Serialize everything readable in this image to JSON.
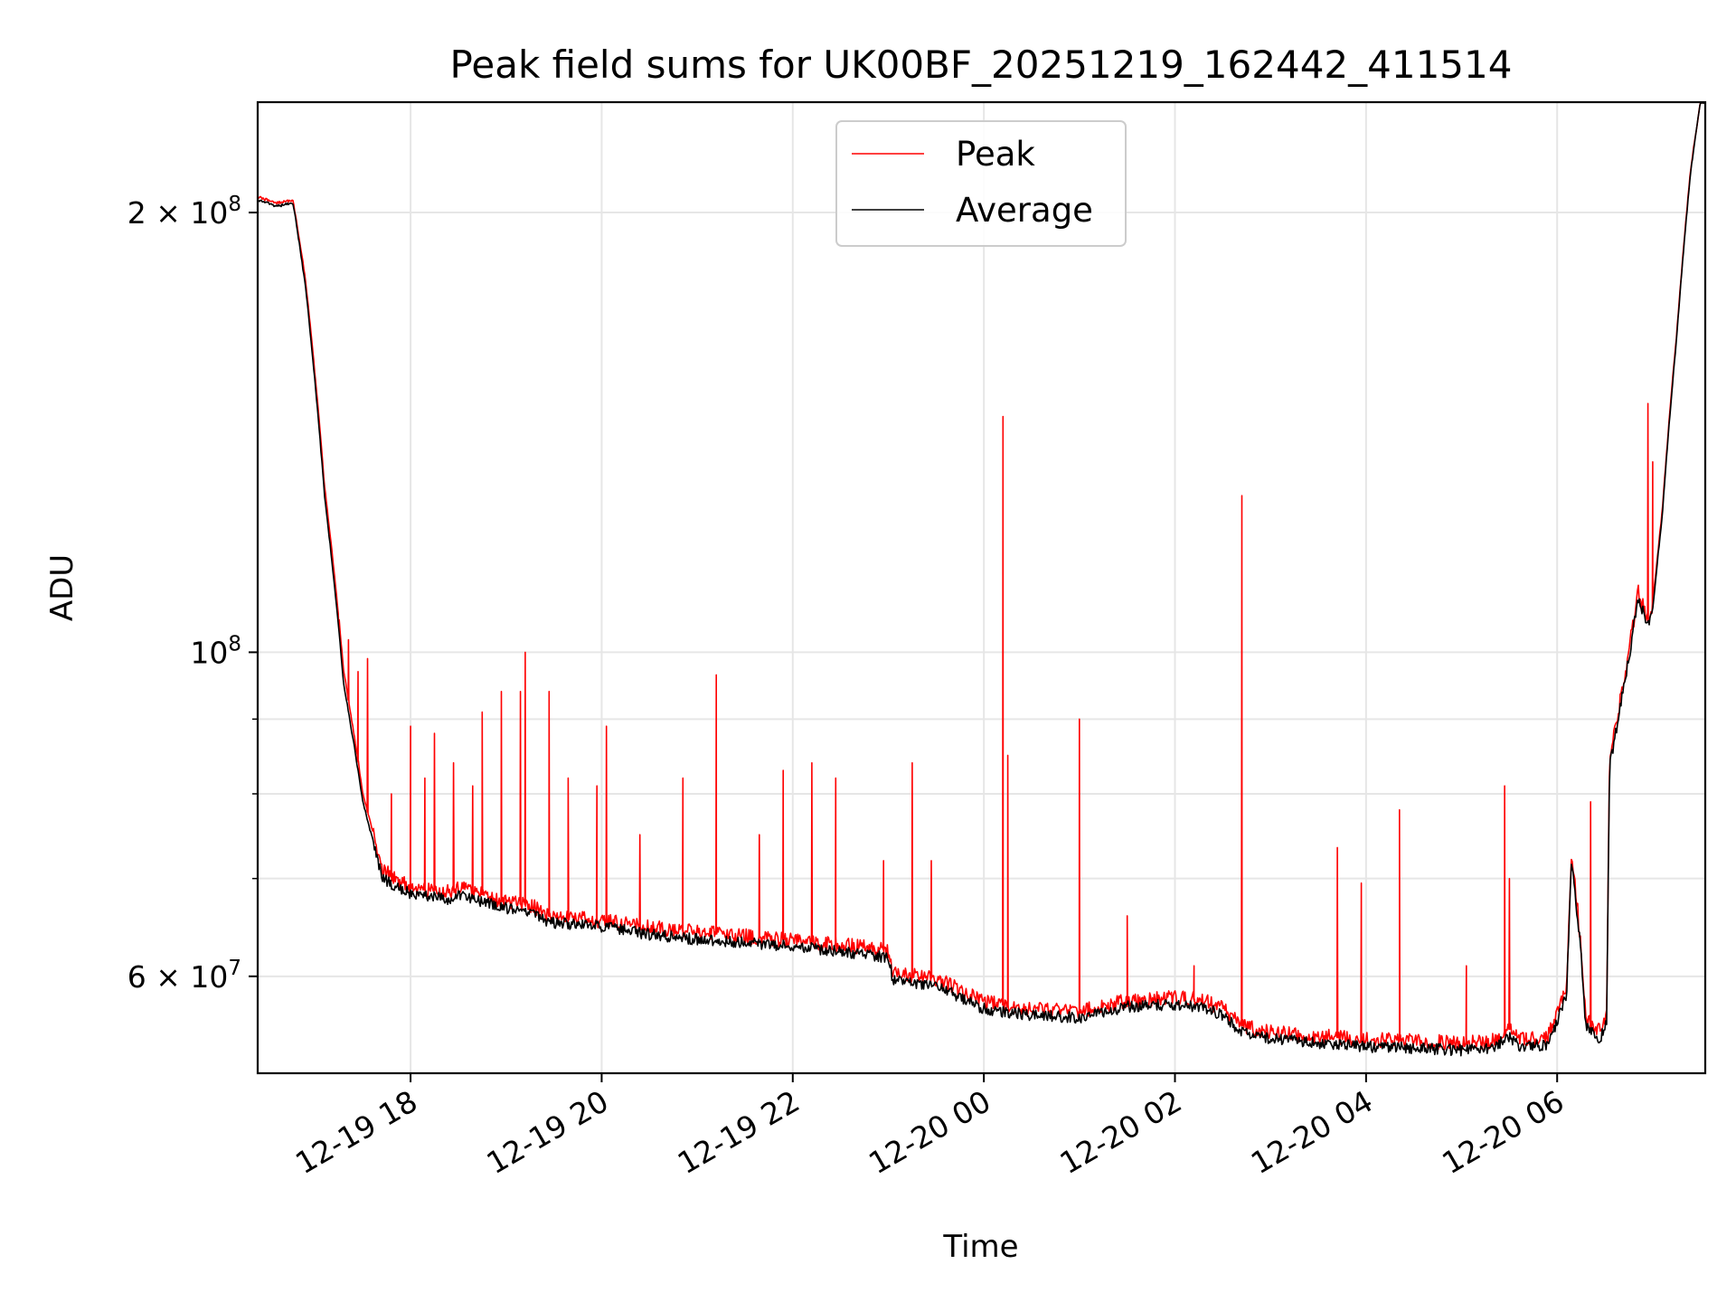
{
  "chart_data": {
    "type": "line",
    "title": "Peak field sums for UK00BF_20251219_162442_411514",
    "xlabel": "Time",
    "ylabel": "ADU",
    "yscale": "log",
    "ylim": [
      51500000,
      238000000
    ],
    "xlim_hours": [
      16.4,
      31.55
    ],
    "x_unit": "hours since 2025-12-19 00:00",
    "grid": true,
    "legend_position": "top-center",
    "x_ticks": [
      {
        "value": 18,
        "label": "12-19 18"
      },
      {
        "value": 20,
        "label": "12-19 20"
      },
      {
        "value": 22,
        "label": "12-19 22"
      },
      {
        "value": 24,
        "label": "12-20 00"
      },
      {
        "value": 26,
        "label": "12-20 02"
      },
      {
        "value": 28,
        "label": "12-20 04"
      },
      {
        "value": 30,
        "label": "12-20 06"
      }
    ],
    "y_ticks": [
      {
        "value": 200000000,
        "label": "2 × 10⁸",
        "base": "2 × 10",
        "exp": "8"
      },
      {
        "value": 100000000,
        "label": "10⁸",
        "base": "10",
        "exp": "8"
      },
      {
        "value": 60000000,
        "label": "6 × 10⁷",
        "base": "6 × 10",
        "exp": "7"
      }
    ],
    "y_minor_ticks": [
      70000000,
      80000000,
      90000000
    ],
    "series": [
      {
        "name": "Peak",
        "color": "#ff0000",
        "baseline": [
          [
            16.4,
            205000000
          ],
          [
            16.6,
            203000000
          ],
          [
            16.77,
            204000000
          ],
          [
            16.9,
            180000000
          ],
          [
            17.1,
            130000000
          ],
          [
            17.3,
            97000000
          ],
          [
            17.5,
            80000000
          ],
          [
            17.7,
            71000000
          ],
          [
            18.0,
            69000000
          ],
          [
            18.4,
            68500000
          ],
          [
            18.5,
            69000000
          ],
          [
            19.0,
            67500000
          ],
          [
            19.3,
            67000000
          ],
          [
            19.4,
            66000000
          ],
          [
            20.0,
            65500000
          ],
          [
            20.5,
            64800000
          ],
          [
            21.0,
            64300000
          ],
          [
            22.0,
            63500000
          ],
          [
            22.8,
            62800000
          ],
          [
            23.0,
            62500000
          ],
          [
            23.05,
            60300000
          ],
          [
            23.5,
            59800000
          ],
          [
            24.0,
            57600000
          ],
          [
            24.5,
            57000000
          ],
          [
            25.0,
            56800000
          ],
          [
            25.5,
            57800000
          ],
          [
            26.0,
            58000000
          ],
          [
            26.3,
            57800000
          ],
          [
            26.5,
            57000000
          ],
          [
            26.7,
            55500000
          ],
          [
            27.0,
            55000000
          ],
          [
            27.5,
            54600000
          ],
          [
            28.0,
            54300000
          ],
          [
            28.5,
            54200000
          ],
          [
            29.0,
            54000000
          ],
          [
            29.3,
            54100000
          ],
          [
            29.5,
            55200000
          ],
          [
            29.6,
            54300000
          ],
          [
            29.9,
            54500000
          ],
          [
            30.0,
            56500000
          ],
          [
            30.1,
            59000000
          ],
          [
            30.15,
            73000000
          ],
          [
            30.25,
            63000000
          ],
          [
            30.3,
            56000000
          ],
          [
            30.45,
            55000000
          ],
          [
            30.52,
            56500000
          ],
          [
            30.55,
            85000000
          ],
          [
            30.6,
            88000000
          ],
          [
            30.75,
            100000000
          ],
          [
            30.85,
            110000000
          ],
          [
            30.95,
            105000000
          ],
          [
            31.0,
            108000000
          ],
          [
            31.1,
            125000000
          ],
          [
            31.25,
            165000000
          ],
          [
            31.4,
            215000000
          ],
          [
            31.5,
            238000000
          ],
          [
            31.55,
            238000000
          ]
        ],
        "spikes": [
          [
            17.25,
            104000000
          ],
          [
            17.35,
            102000000
          ],
          [
            17.45,
            97000000
          ],
          [
            17.55,
            99000000
          ],
          [
            17.8,
            80000000
          ],
          [
            18.0,
            89000000
          ],
          [
            18.15,
            82000000
          ],
          [
            18.25,
            88000000
          ],
          [
            18.45,
            84000000
          ],
          [
            18.65,
            81000000
          ],
          [
            18.75,
            91000000
          ],
          [
            18.95,
            94000000
          ],
          [
            19.15,
            94000000
          ],
          [
            19.2,
            100000000
          ],
          [
            19.45,
            94000000
          ],
          [
            19.65,
            82000000
          ],
          [
            19.95,
            81000000
          ],
          [
            20.05,
            89000000
          ],
          [
            20.4,
            75000000
          ],
          [
            20.85,
            82000000
          ],
          [
            21.2,
            96500000
          ],
          [
            21.65,
            75000000
          ],
          [
            21.9,
            83000000
          ],
          [
            22.2,
            84000000
          ],
          [
            22.45,
            82000000
          ],
          [
            22.95,
            72000000
          ],
          [
            23.25,
            84000000
          ],
          [
            23.45,
            72000000
          ],
          [
            24.2,
            145000000
          ],
          [
            24.25,
            85000000
          ],
          [
            25.0,
            90000000
          ],
          [
            25.5,
            66000000
          ],
          [
            26.2,
            61000000
          ],
          [
            26.7,
            128000000
          ],
          [
            27.7,
            73500000
          ],
          [
            27.95,
            69500000
          ],
          [
            28.35,
            78000000
          ],
          [
            29.05,
            61000000
          ],
          [
            29.45,
            81000000
          ],
          [
            29.5,
            70000000
          ],
          [
            30.35,
            79000000
          ],
          [
            30.95,
            148000000
          ],
          [
            31.0,
            135000000
          ]
        ]
      },
      {
        "name": "Average",
        "color": "#000000",
        "baseline": [
          [
            16.4,
            204000000
          ],
          [
            16.6,
            202000000
          ],
          [
            16.77,
            203000000
          ],
          [
            16.9,
            178000000
          ],
          [
            17.1,
            128000000
          ],
          [
            17.3,
            95000000
          ],
          [
            17.5,
            79000000
          ],
          [
            17.7,
            70000000
          ],
          [
            18.0,
            68300000
          ],
          [
            18.4,
            67800000
          ],
          [
            18.5,
            68200000
          ],
          [
            19.0,
            66800000
          ],
          [
            19.3,
            66300000
          ],
          [
            19.4,
            65400000
          ],
          [
            20.0,
            64900000
          ],
          [
            20.5,
            64100000
          ],
          [
            21.0,
            63600000
          ],
          [
            22.0,
            62900000
          ],
          [
            22.8,
            62100000
          ],
          [
            23.0,
            61800000
          ],
          [
            23.05,
            59600000
          ],
          [
            23.5,
            59100000
          ],
          [
            24.0,
            57000000
          ],
          [
            24.5,
            56400000
          ],
          [
            25.0,
            56200000
          ],
          [
            25.5,
            57200000
          ],
          [
            26.0,
            57400000
          ],
          [
            26.3,
            57200000
          ],
          [
            26.5,
            56400000
          ],
          [
            26.7,
            54900000
          ],
          [
            27.0,
            54400000
          ],
          [
            27.5,
            54000000
          ],
          [
            28.0,
            53700000
          ],
          [
            28.5,
            53600000
          ],
          [
            29.0,
            53400000
          ],
          [
            29.3,
            53500000
          ],
          [
            29.5,
            54600000
          ],
          [
            29.6,
            53700000
          ],
          [
            29.9,
            53900000
          ],
          [
            30.0,
            55900000
          ],
          [
            30.1,
            58400000
          ],
          [
            30.15,
            72000000
          ],
          [
            30.25,
            62300000
          ],
          [
            30.3,
            55400000
          ],
          [
            30.45,
            54400000
          ],
          [
            30.52,
            55900000
          ],
          [
            30.55,
            84000000
          ],
          [
            30.6,
            87000000
          ],
          [
            30.75,
            99000000
          ],
          [
            30.85,
            109000000
          ],
          [
            30.95,
            104000000
          ],
          [
            31.0,
            107000000
          ],
          [
            31.1,
            124000000
          ],
          [
            31.25,
            164000000
          ],
          [
            31.4,
            214000000
          ],
          [
            31.5,
            238000000
          ],
          [
            31.55,
            238000000
          ]
        ]
      }
    ]
  }
}
